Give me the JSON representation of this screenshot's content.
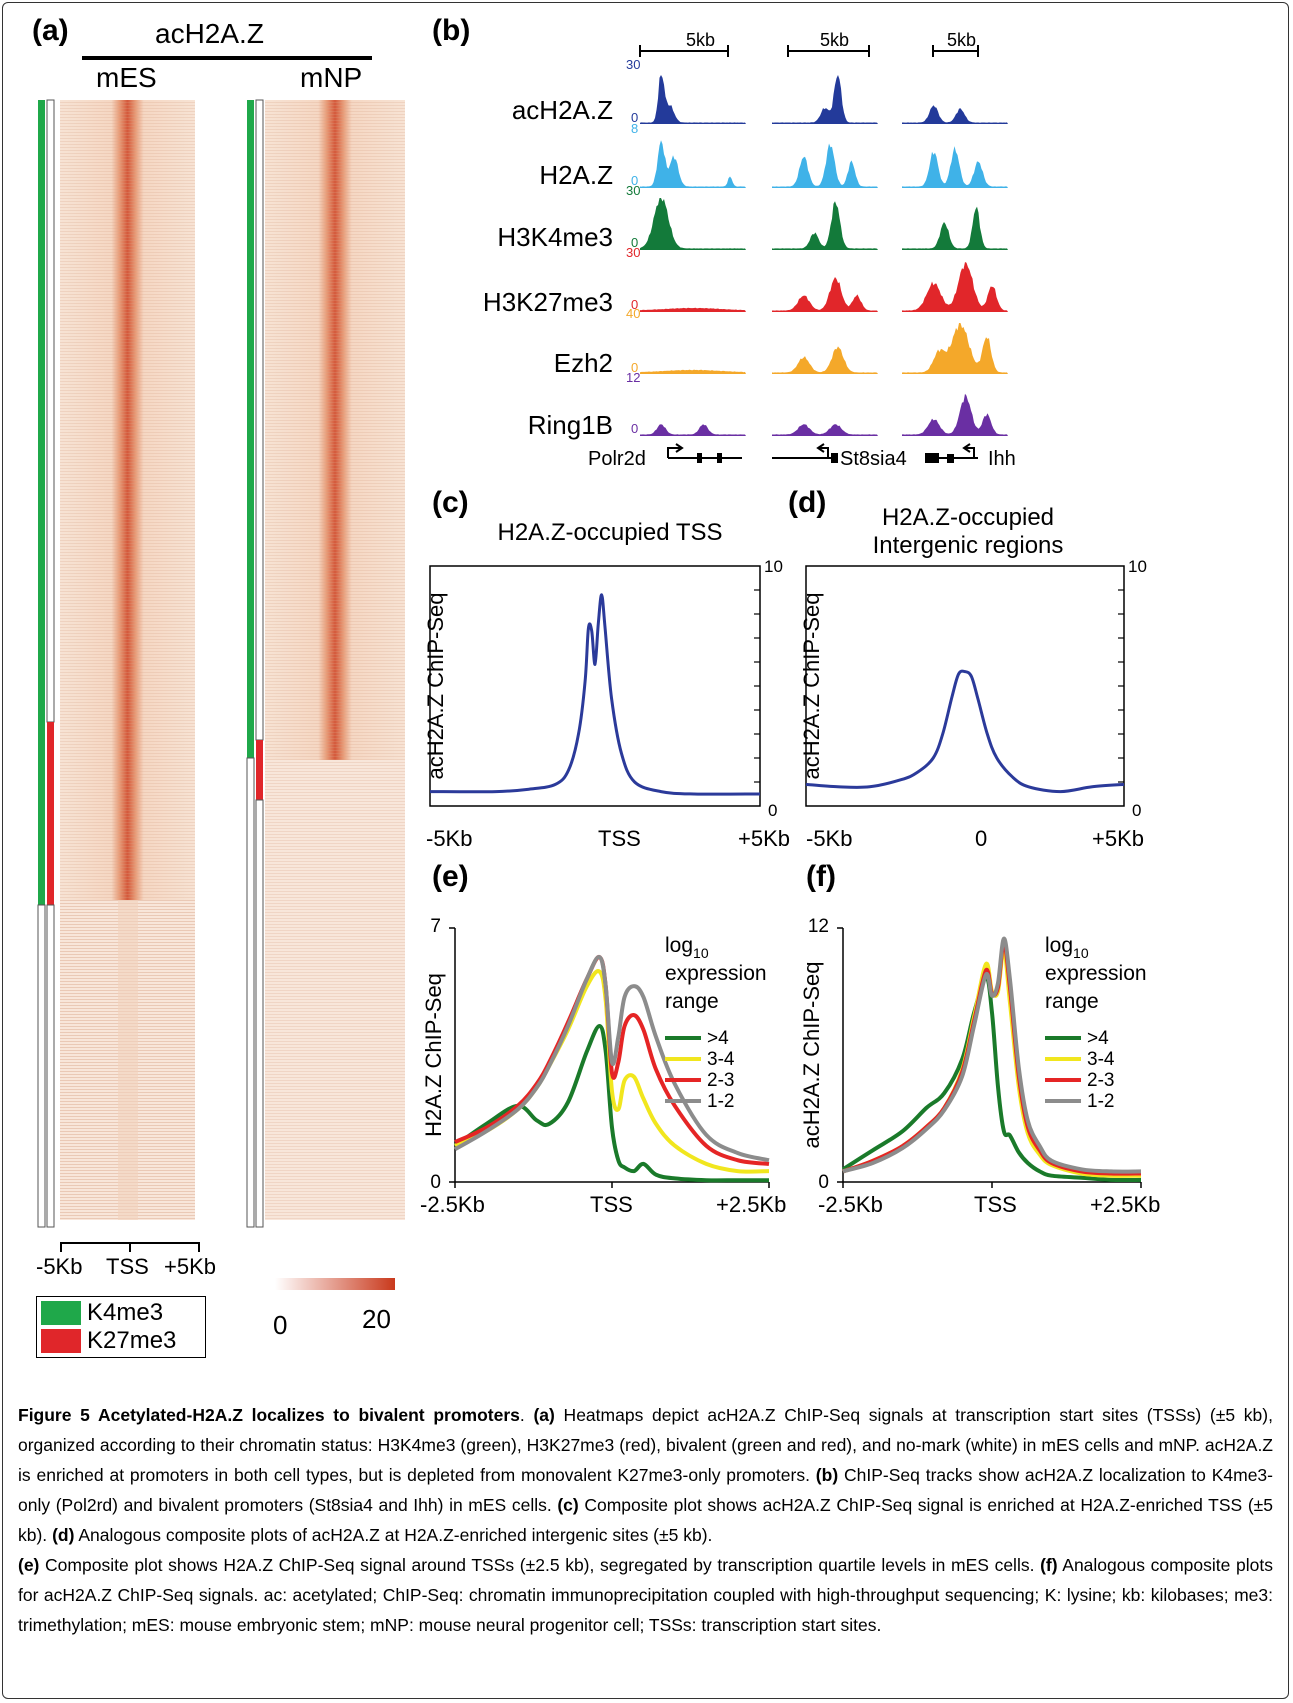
{
  "panel_a": {
    "label": "(a)",
    "header": "acH2A.Z",
    "col1": "mES",
    "col2": "mNP",
    "axis": {
      "left": "-5Kb",
      "mid": "TSS",
      "right": "+5Kb"
    },
    "legend": {
      "k4": "K4me3",
      "k27": "K27me3"
    },
    "scale": {
      "min": "0",
      "max": "20"
    },
    "colors": {
      "k4": "#1fa84a",
      "k27": "#e0262a",
      "heat": "#c9391c"
    }
  },
  "panel_b": {
    "label": "(b)",
    "scale_label": "5kb",
    "tracks": [
      {
        "name": "acH2A.Z",
        "max": "30",
        "min": "0",
        "color": "#233a9a"
      },
      {
        "name": "H2A.Z",
        "max": "8",
        "min": "0",
        "color": "#3fb2e8"
      },
      {
        "name": "H3K4me3",
        "max": "30",
        "min": "0",
        "color": "#137a3a"
      },
      {
        "name": "H3K27me3",
        "max": "30",
        "min": "0",
        "color": "#e1262a"
      },
      {
        "name": "Ezh2",
        "max": "40",
        "min": "0",
        "color": "#f4a82a"
      },
      {
        "name": "Ring1B",
        "max": "12",
        "min": "0",
        "color": "#6a2fa3"
      }
    ],
    "genes": [
      "Polr2d",
      "St8sia4",
      "Ihh"
    ]
  },
  "caption": {
    "title": "Figure 5 Acetylated-H2A.Z localizes to bivalent promoters",
    "a_lbl": "(a)",
    "a_txt": " Heatmaps depict acH2A.Z ChIP-Seq signals at transcription start sites (TSSs) (±5 kb), organized according to their chromatin status: H3K4me3 (green), H3K27me3 (red), bivalent (green and red), and no-mark (white) in mES cells and mNP. acH2A.Z is enriched at promoters in both cell types, but is depleted from monovalent K27me3-only promoters.",
    "b_lbl": "(b)",
    "b_txt": " ChIP-Seq tracks show acH2A.Z localization to K4me3-only (Pol2rd) and bivalent promoters (St8sia4 and Ihh) in mES cells.",
    "c_lbl": "(c)",
    "c_txt": " Composite plot shows acH2A.Z ChIP-Seq signal is enriched at H2A.Z-enriched TSS (±5 kb).",
    "d_lbl": "(d)",
    "d_txt": " Analogous composite plots of acH2A.Z at H2A.Z-enriched intergenic sites (±5 kb).",
    "e_lbl": "(e)",
    "e_txt": " Composite plot shows H2A.Z ChIP-Seq signal around TSSs (±2.5 kb), segregated by transcription quartile levels in mES cells.",
    "f_lbl": "(f)",
    "f_txt": " Analogous composite plots for acH2A.Z ChIP-Seq signals. ac: acetylated; ChIP-Seq: chromatin immunoprecipitation coupled with high-throughput sequencing; K: lysine; kb: kilobases; me3: trimethylation; mES: mouse embryonic stem; mNP: mouse neural progenitor cell; TSSs: transcription start sites."
  },
  "chart_data": [
    {
      "panel": "(c)",
      "type": "line",
      "title": "H2A.Z-occupied TSS",
      "ylabel": "acH2A.Z ChIP-Seq",
      "xticks": [
        "-5Kb",
        "TSS",
        "+5Kb"
      ],
      "xlim": [
        -5,
        5
      ],
      "ylim": [
        0,
        10
      ],
      "yticks_labeled": [
        "0",
        "10"
      ],
      "color": "#2b3a9a",
      "series": [
        {
          "x": [
            -5,
            -3,
            -2,
            -1.2,
            -0.8,
            -0.5,
            -0.3,
            -0.2,
            -0.1,
            0,
            0.1,
            0.2,
            0.3,
            0.5,
            0.8,
            1.2,
            2,
            3,
            5
          ],
          "values": [
            0.6,
            0.6,
            0.7,
            0.9,
            1.5,
            3.0,
            5.2,
            7.4,
            7.3,
            5.9,
            7.6,
            8.8,
            7.5,
            4.5,
            2.2,
            1.0,
            0.6,
            0.5,
            0.5
          ]
        }
      ]
    },
    {
      "panel": "(d)",
      "type": "line",
      "title": "H2A.Z-occupied\nIntergenic regions",
      "ylabel": "acH2A.Z ChIP-Seq",
      "xticks": [
        "-5Kb",
        "0",
        "+5Kb"
      ],
      "xlim": [
        -5,
        5
      ],
      "ylim": [
        0,
        10
      ],
      "yticks_labeled": [
        "0",
        "10"
      ],
      "color": "#2b3a9a",
      "series": [
        {
          "x": [
            -5,
            -4,
            -3,
            -2,
            -1.5,
            -1,
            -0.7,
            -0.4,
            -0.2,
            0,
            0.2,
            0.4,
            0.7,
            1,
            1.5,
            2,
            3,
            4,
            5
          ],
          "values": [
            0.9,
            0.8,
            0.8,
            1.1,
            1.4,
            2.0,
            3.0,
            4.6,
            5.5,
            5.6,
            5.4,
            4.5,
            3.0,
            2.0,
            1.2,
            0.8,
            0.6,
            0.8,
            0.9
          ]
        }
      ]
    },
    {
      "panel": "(e)",
      "type": "line",
      "ylabel": "H2A.Z ChIP-Seq",
      "xticks": [
        "-2.5Kb",
        "TSS",
        "+2.5Kb"
      ],
      "xlim": [
        -2.5,
        2.5
      ],
      "ylim": [
        0,
        7
      ],
      "yticks_labeled": [
        "0",
        "7"
      ],
      "legend_title": "log10 expression range",
      "x": [
        -2.5,
        -2.0,
        -1.5,
        -1.2,
        -1.0,
        -0.7,
        -0.4,
        -0.2,
        -0.1,
        0,
        0.1,
        0.2,
        0.35,
        0.5,
        0.7,
        1.0,
        1.5,
        2.0,
        2.5
      ],
      "series": [
        {
          "name": ">4",
          "color": "#1a7a2a",
          "values": [
            1.0,
            1.6,
            2.1,
            1.7,
            1.6,
            2.2,
            3.6,
            4.3,
            3.6,
            1.5,
            0.6,
            0.4,
            0.3,
            0.5,
            0.2,
            0.1,
            0.05,
            0.05,
            0.05
          ]
        },
        {
          "name": "3-4",
          "color": "#f1e61e",
          "values": [
            1.0,
            1.4,
            2.0,
            2.6,
            3.2,
            4.2,
            5.4,
            5.8,
            5.0,
            2.5,
            2.0,
            2.8,
            2.9,
            2.3,
            1.6,
            1.0,
            0.5,
            0.3,
            0.3
          ]
        },
        {
          "name": "2-3",
          "color": "#e52525",
          "values": [
            1.1,
            1.5,
            2.1,
            2.7,
            3.3,
            4.4,
            5.6,
            6.2,
            5.4,
            3.0,
            3.3,
            4.3,
            4.6,
            4.2,
            3.1,
            2.1,
            1.0,
            0.6,
            0.5
          ]
        },
        {
          "name": "1-2",
          "color": "#8c8c8c",
          "values": [
            0.9,
            1.4,
            2.0,
            2.6,
            3.2,
            4.3,
            5.6,
            6.2,
            5.4,
            3.3,
            4.0,
            5.1,
            5.4,
            5.1,
            4.0,
            2.7,
            1.3,
            0.8,
            0.6
          ]
        }
      ]
    },
    {
      "panel": "(f)",
      "type": "line",
      "ylabel": "acH2A.Z ChIP-Seq",
      "xticks": [
        "-2.5Kb",
        "TSS",
        "+2.5Kb"
      ],
      "xlim": [
        -2.5,
        2.5
      ],
      "ylim": [
        0,
        12
      ],
      "yticks_labeled": [
        "0",
        "12"
      ],
      "legend_title": "log10 expression range",
      "x": [
        -2.5,
        -2.0,
        -1.5,
        -1.1,
        -0.8,
        -0.5,
        -0.3,
        -0.1,
        0,
        0.1,
        0.2,
        0.3,
        0.45,
        0.6,
        0.8,
        1.0,
        1.5,
        2.0,
        2.5
      ],
      "series": [
        {
          "name": ">4",
          "color": "#1a7a2a",
          "values": [
            0.6,
            1.5,
            2.4,
            3.5,
            4.2,
            5.8,
            8.0,
            9.7,
            8.0,
            4.5,
            2.4,
            2.2,
            1.4,
            0.9,
            0.5,
            0.3,
            0.2,
            0.1,
            0.1
          ]
        },
        {
          "name": "3-4",
          "color": "#f1e61e",
          "values": [
            0.5,
            1.0,
            1.7,
            2.6,
            3.5,
            5.3,
            7.8,
            10.3,
            9.0,
            9.0,
            11.0,
            8.5,
            4.5,
            2.3,
            1.3,
            0.8,
            0.4,
            0.3,
            0.3
          ]
        },
        {
          "name": "2-3",
          "color": "#e52525",
          "values": [
            0.5,
            1.0,
            1.7,
            2.6,
            3.5,
            5.2,
            7.6,
            10.0,
            8.9,
            9.2,
            11.3,
            9.2,
            5.0,
            2.6,
            1.5,
            0.9,
            0.5,
            0.4,
            0.4
          ]
        },
        {
          "name": "1-2",
          "color": "#8c8c8c",
          "values": [
            0.5,
            0.9,
            1.6,
            2.5,
            3.4,
            5.0,
            7.4,
            9.8,
            8.8,
            9.4,
            11.5,
            9.6,
            5.4,
            2.9,
            1.7,
            1.0,
            0.6,
            0.5,
            0.5
          ]
        }
      ]
    }
  ]
}
